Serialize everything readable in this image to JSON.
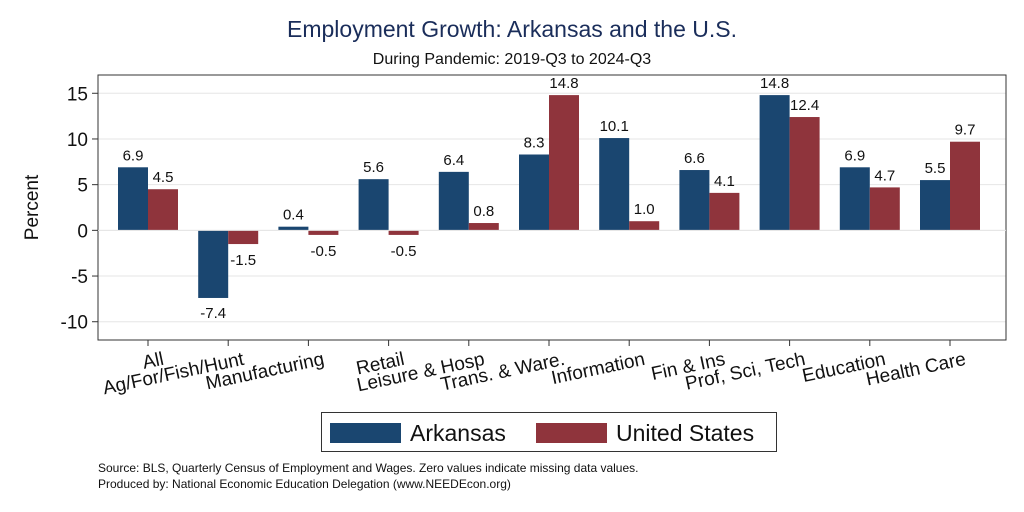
{
  "chart_data": {
    "type": "bar",
    "title": "Employment Growth: Arkansas and the U.S.",
    "subtitle": "During Pandemic: 2019-Q3 to 2024-Q3",
    "xlabel": "",
    "ylabel": "Percent",
    "ylim": [
      -12,
      17
    ],
    "yticks": [
      15,
      10,
      5,
      0,
      -5,
      -10
    ],
    "ytick_labels": [
      "15",
      "10",
      "5",
      "0",
      "-5",
      "-10"
    ],
    "grid": true,
    "legend_position": "bottom",
    "categories": [
      "All",
      "Ag/For/Fish/Hunt",
      "Manufacturing",
      "Retail",
      "Leisure & Hosp",
      "Trans. & Ware.",
      "Information",
      "Fin & Ins",
      "Prof, Sci, Tech",
      "Education",
      "Health Care"
    ],
    "series": [
      {
        "name": "Arkansas",
        "color": "#1a4670",
        "values": [
          6.9,
          -7.4,
          0.4,
          5.6,
          6.4,
          8.3,
          10.1,
          6.6,
          14.8,
          6.9,
          5.5
        ],
        "labels": [
          "6.9",
          "-7.4",
          "0.4",
          "5.6",
          "6.4",
          "8.3",
          "10.1",
          "6.6",
          "14.8",
          "6.9",
          "5.5"
        ]
      },
      {
        "name": "United States",
        "color": "#8f343c",
        "values": [
          4.5,
          -1.5,
          -0.5,
          -0.5,
          0.8,
          14.8,
          1.0,
          4.1,
          12.4,
          4.7,
          9.7
        ],
        "labels": [
          "4.5",
          "-1.5",
          "-0.5",
          "-0.5",
          "0.8",
          "14.8",
          "1.0",
          "4.1",
          "12.4",
          "4.7",
          "9.7"
        ]
      }
    ]
  },
  "footer": {
    "source": "Source: BLS, Quarterly Census of Employment and Wages. Zero values indicate missing data values.",
    "produced": "Produced by: National Economic Education Delegation (www.NEEDEcon.org)"
  }
}
